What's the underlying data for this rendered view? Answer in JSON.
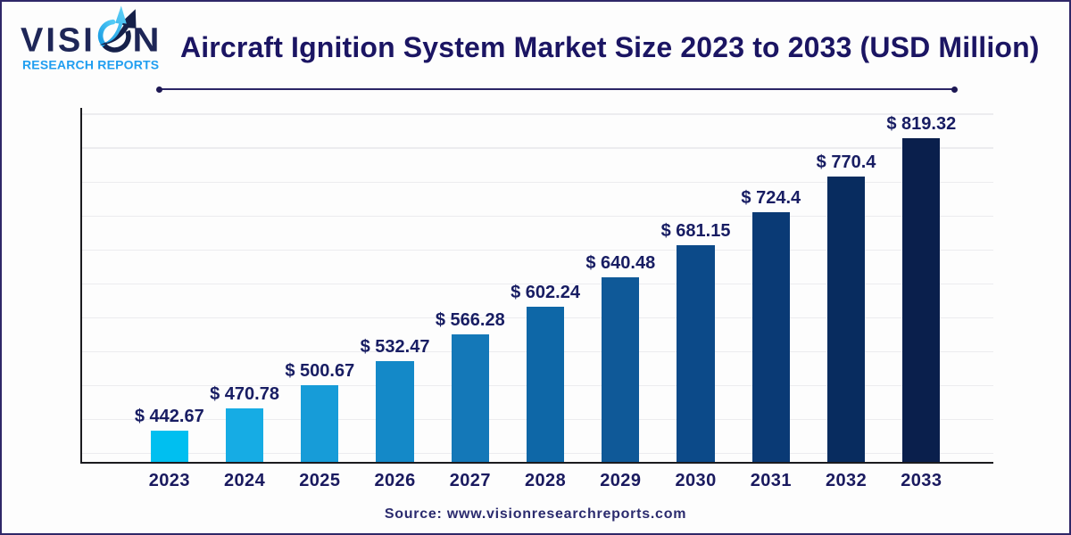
{
  "page": {
    "background": "#fdfdfd",
    "border_color": "#2f2768"
  },
  "logo": {
    "brand": "VISION",
    "brand_left": "VISI",
    "brand_right": "N",
    "tagline": "RESEARCH REPORTS",
    "brand_color": "#1e2657",
    "tagline_color": "#209ef0",
    "swoosh_cyan": "#27b4ec",
    "swoosh_navy": "#152049"
  },
  "header": {
    "title": "Aircraft Ignition System Market Size 2023 to 2033 (USD Million)",
    "title_color": "#1b1563",
    "divider_color": "#2b2566"
  },
  "chart_data": {
    "type": "bar",
    "title": "Aircraft Ignition System Market Size 2023 to 2033 (USD Million)",
    "categories": [
      "2023",
      "2024",
      "2025",
      "2026",
      "2027",
      "2028",
      "2029",
      "2030",
      "2031",
      "2032",
      "2033"
    ],
    "values": [
      442.67,
      470.78,
      500.67,
      532.47,
      566.28,
      602.24,
      640.48,
      681.15,
      724.4,
      770.4,
      819.32
    ],
    "value_prefix": "$ ",
    "bar_colors": [
      "#00bff0",
      "#16ace4",
      "#179cd8",
      "#1489c8",
      "#1478b8",
      "#0e67a7",
      "#0f5998",
      "#0c4a89",
      "#0a3a75",
      "#082c5f",
      "#0a1f4c"
    ],
    "xlabel": "",
    "ylabel": "",
    "ylim": [
      400,
      862
    ],
    "grid": true,
    "grid_color": "#ececef",
    "axis_color": "#1b1b1f",
    "label_color": "#181d63",
    "legend": false
  },
  "footer": {
    "source": "Source: www.visionresearchreports.com",
    "color": "#2b2b6e"
  }
}
